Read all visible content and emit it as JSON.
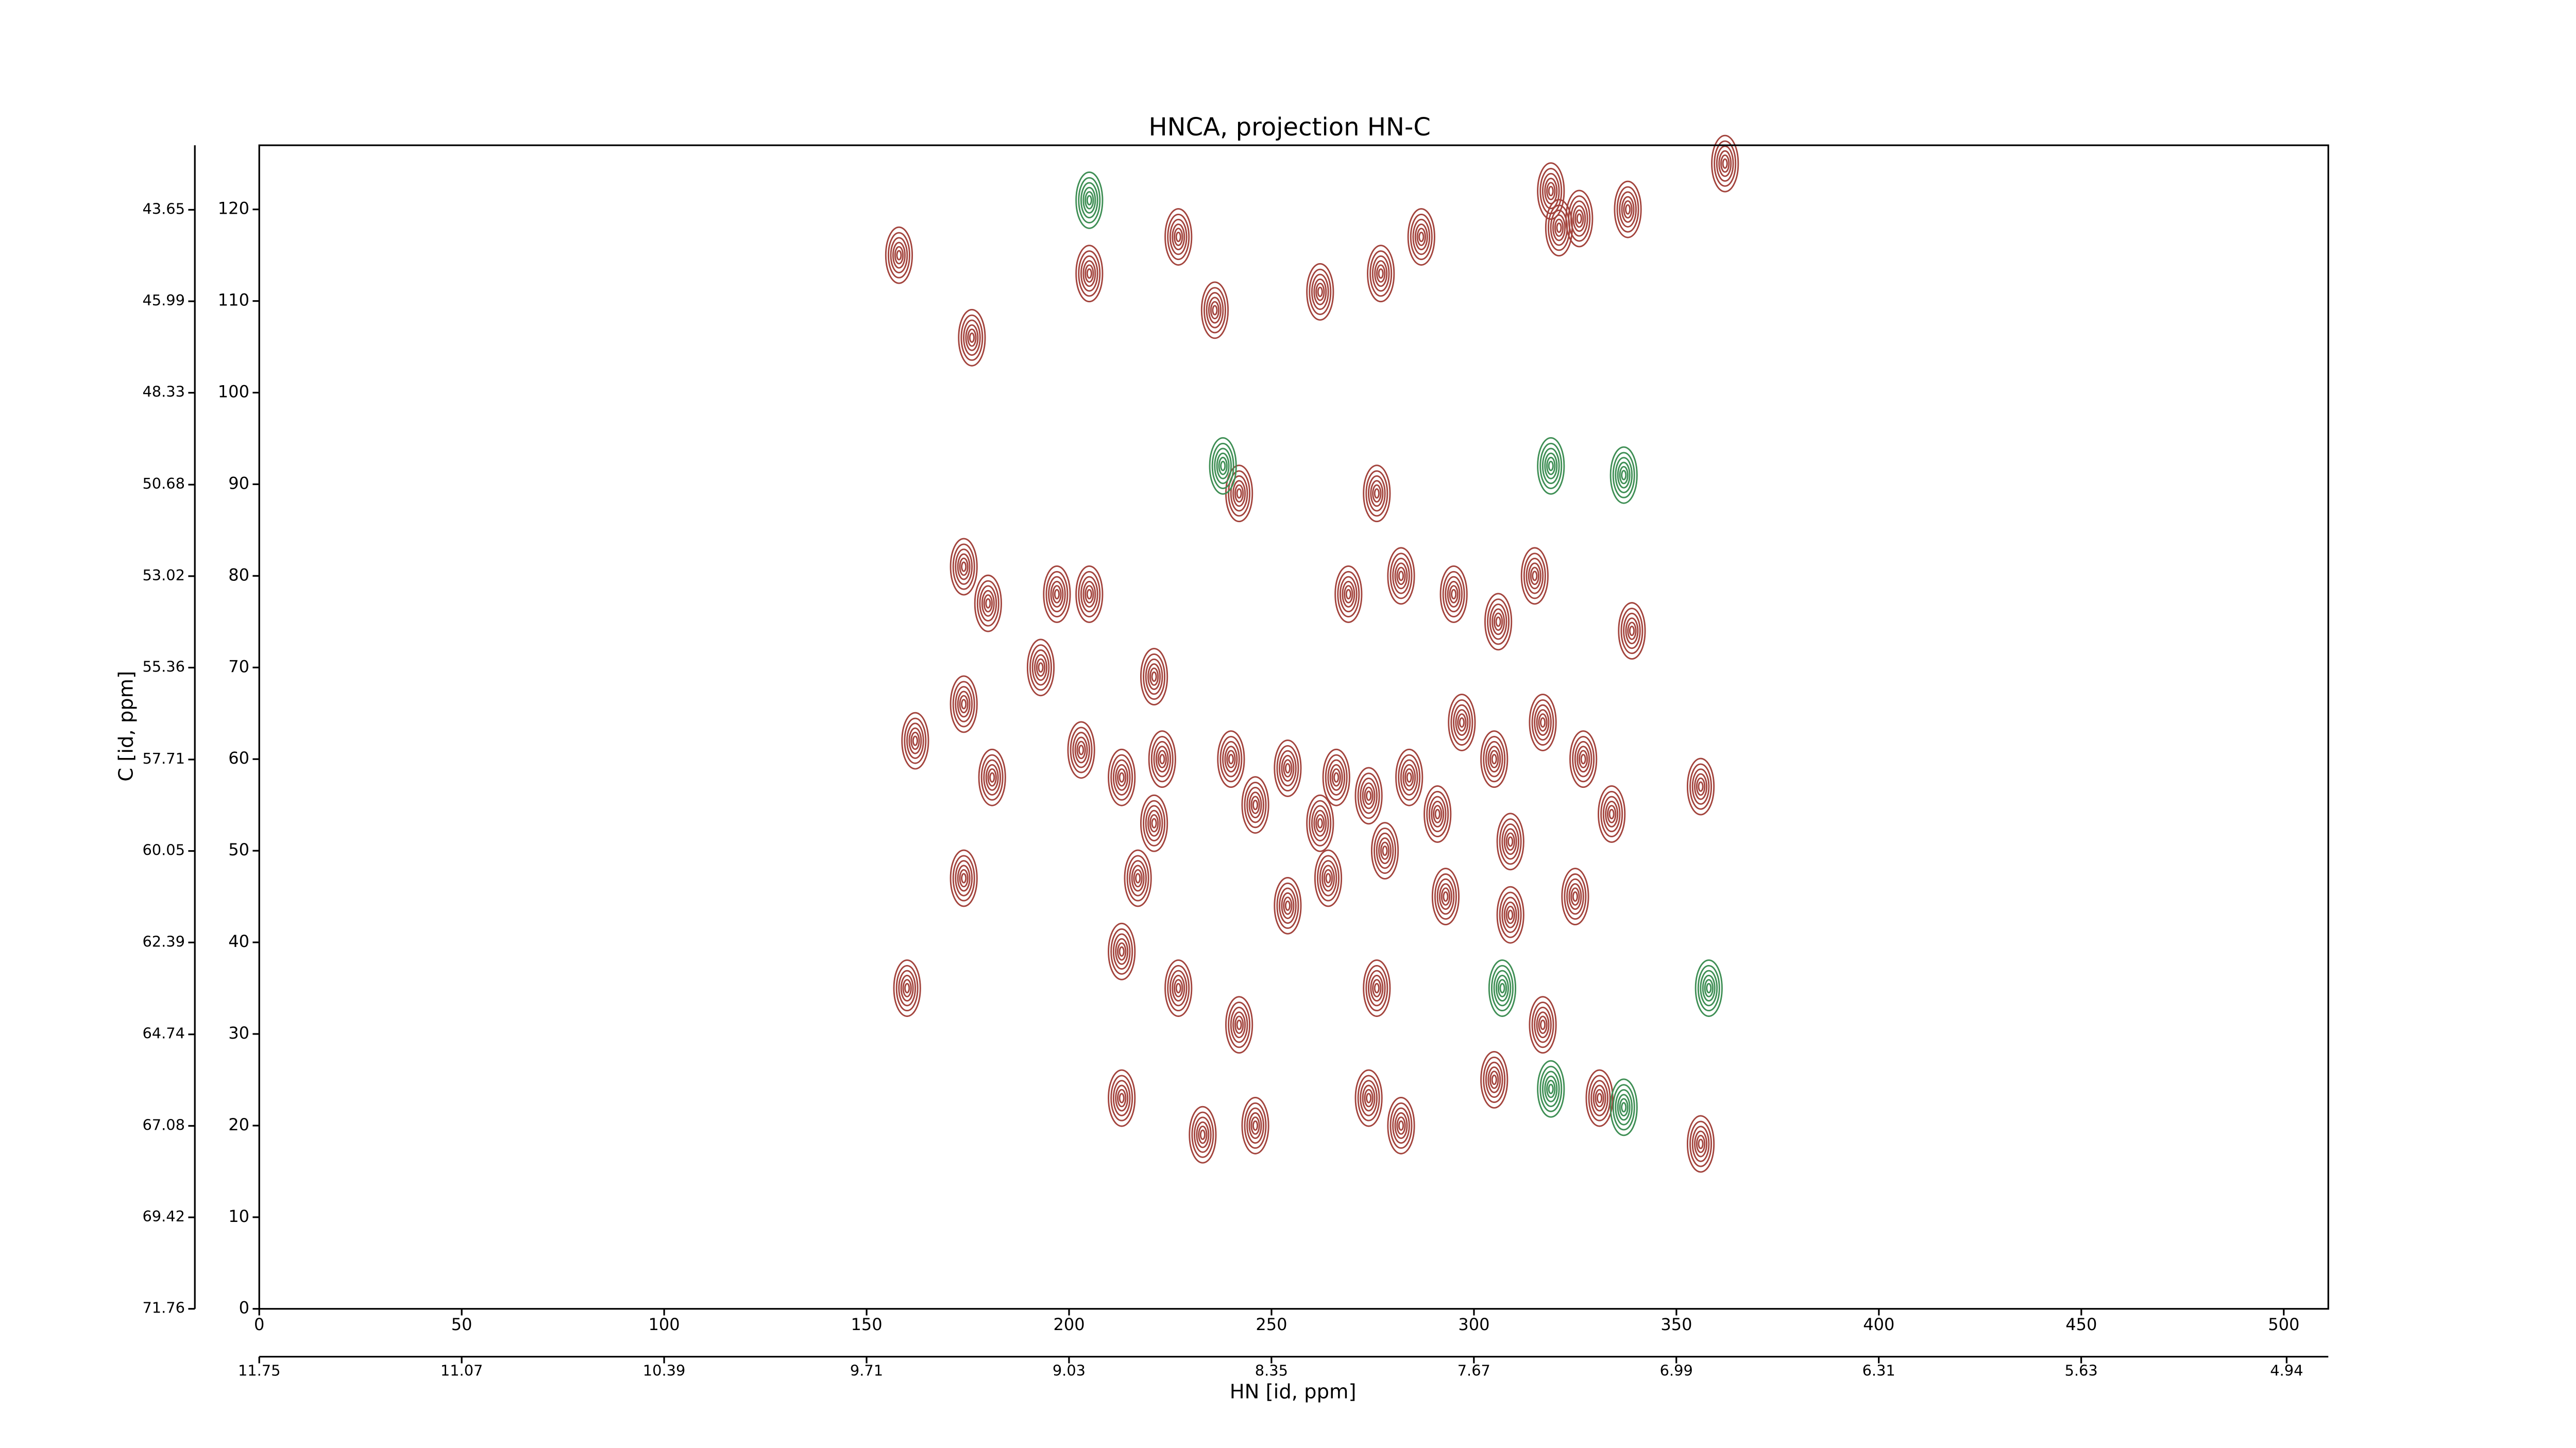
{
  "chart_data": {
    "type": "contour",
    "title": "HNCA, projection HN-C",
    "xlabel": "HN [id, ppm]",
    "ylabel": "C [id, ppm]",
    "xlim": [
      0,
      511
    ],
    "xticks": [
      0,
      50,
      100,
      150,
      200,
      250,
      300,
      350,
      400,
      450,
      500
    ],
    "ylim": [
      0,
      127
    ],
    "yticks": [
      0,
      10,
      20,
      30,
      40,
      50,
      60,
      70,
      80,
      90,
      100,
      110,
      120
    ],
    "x2lim": [
      11.75,
      4.8
    ],
    "x2ticks": [
      11.75,
      11.07,
      10.39,
      9.71,
      9.03,
      8.35,
      7.67,
      6.99,
      6.31,
      5.63,
      4.94
    ],
    "y2lim": [
      71.76,
      42.0
    ],
    "y2ticks": [
      43.65,
      45.99,
      48.33,
      50.68,
      53.02,
      55.36,
      57.71,
      60.05,
      62.39,
      64.74,
      67.08,
      69.42,
      71.76
    ],
    "series": [
      {
        "color": "#a3443d",
        "x": [
          158,
          176,
          205,
          227,
          236,
          262,
          277,
          287,
          319,
          326,
          338,
          321,
          362,
          276,
          174,
          180,
          197,
          205,
          221,
          242,
          269,
          282,
          295,
          315,
          306,
          339,
          193,
          174,
          162,
          203,
          213,
          223,
          240,
          254,
          266,
          284,
          297,
          305,
          317,
          327,
          334,
          356,
          181,
          221,
          246,
          262,
          274,
          291,
          309,
          174,
          217,
          254,
          264,
          278,
          293,
          309,
          325,
          160,
          213,
          227,
          242,
          276,
          213,
          233,
          246,
          274,
          282,
          305,
          317,
          331,
          356
        ],
        "values": [
          115,
          106,
          113,
          117,
          109,
          111,
          113,
          117,
          122,
          119,
          120,
          118,
          125,
          89,
          81,
          77,
          78,
          78,
          69,
          89,
          78,
          80,
          78,
          80,
          75,
          74,
          70,
          66,
          62,
          61,
          58,
          60,
          60,
          59,
          58,
          58,
          64,
          60,
          64,
          60,
          54,
          57,
          58,
          53,
          55,
          53,
          56,
          54,
          51,
          47,
          47,
          44,
          47,
          50,
          45,
          43,
          45,
          35,
          39,
          35,
          31,
          35,
          23,
          19,
          20,
          23,
          20,
          25,
          31,
          23,
          18
        ]
      },
      {
        "color": "#3f8f55",
        "x": [
          238,
          319,
          337,
          307,
          319,
          337,
          358,
          205
        ],
        "values": [
          92,
          92,
          91,
          35,
          24,
          22,
          35,
          121
        ]
      }
    ]
  }
}
